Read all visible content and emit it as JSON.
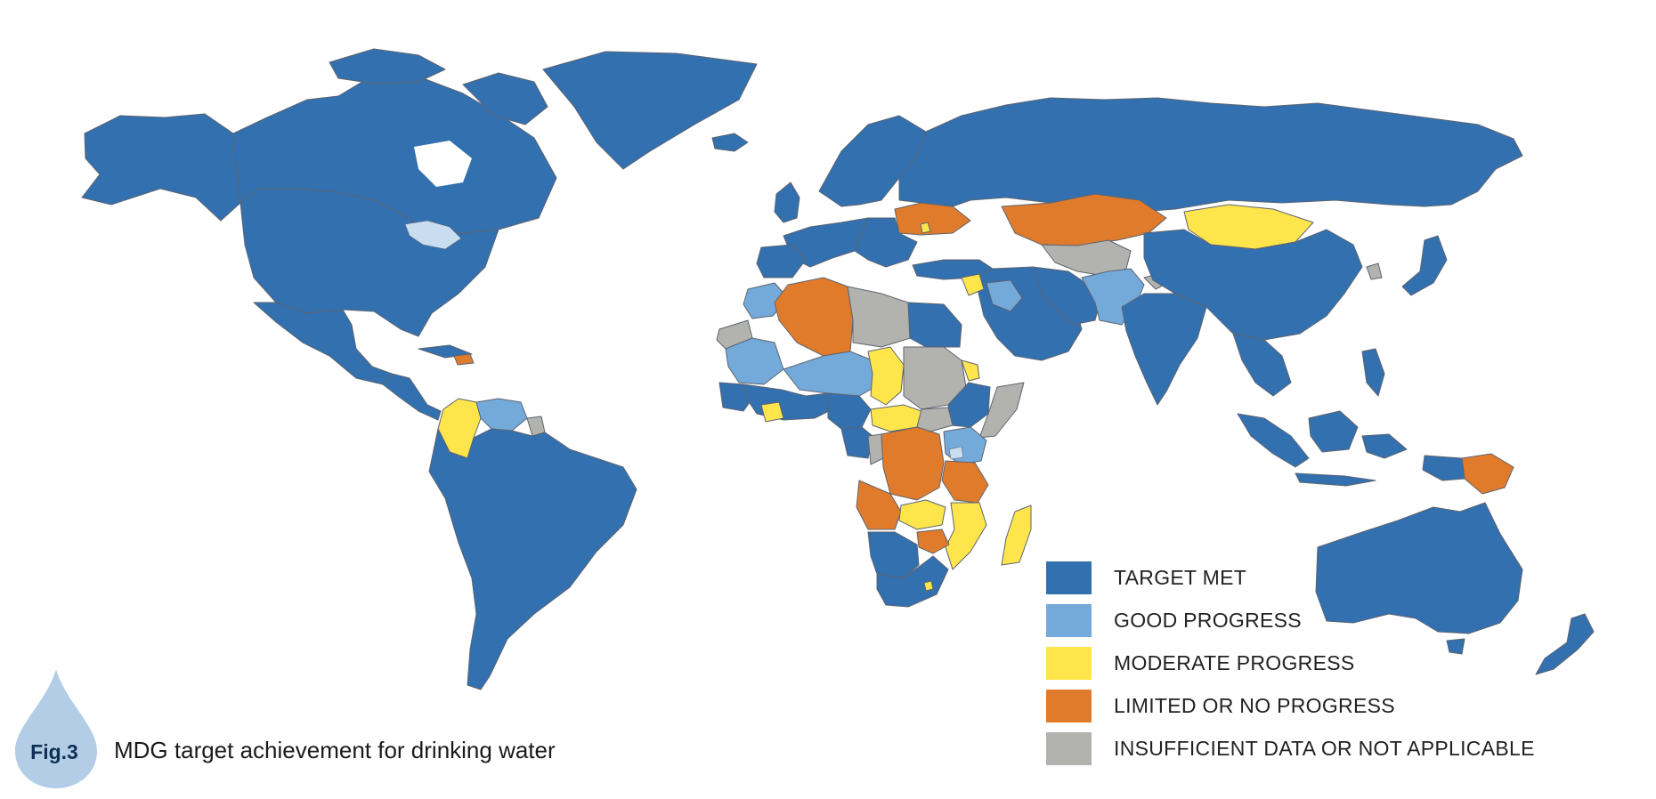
{
  "figure": {
    "label": "Fig.3",
    "caption": "MDG target achievement for drinking water"
  },
  "colors": {
    "target_met": "#3270b0",
    "good_progress": "#74aad9",
    "moderate_progress": "#ffe54c",
    "limited_progress": "#e07b2c",
    "insufficient_data": "#b2b2ae",
    "border": "#5d6470",
    "lake": "#c8ddef",
    "drop": "#b3cde6"
  },
  "legend": {
    "items": [
      {
        "key": "target_met",
        "label": "TARGET MET",
        "color": "#3270b0"
      },
      {
        "key": "good_progress",
        "label": "GOOD PROGRESS",
        "color": "#74aad9"
      },
      {
        "key": "moderate_progress",
        "label": "MODERATE PROGRESS",
        "color": "#ffe54c"
      },
      {
        "key": "limited_progress",
        "label": "LIMITED OR NO PROGRESS",
        "color": "#e07b2c"
      },
      {
        "key": "insufficient_data",
        "label": "INSUFFICIENT DATA OR NOT APPLICABLE",
        "color": "#b2b2ae"
      }
    ]
  }
}
